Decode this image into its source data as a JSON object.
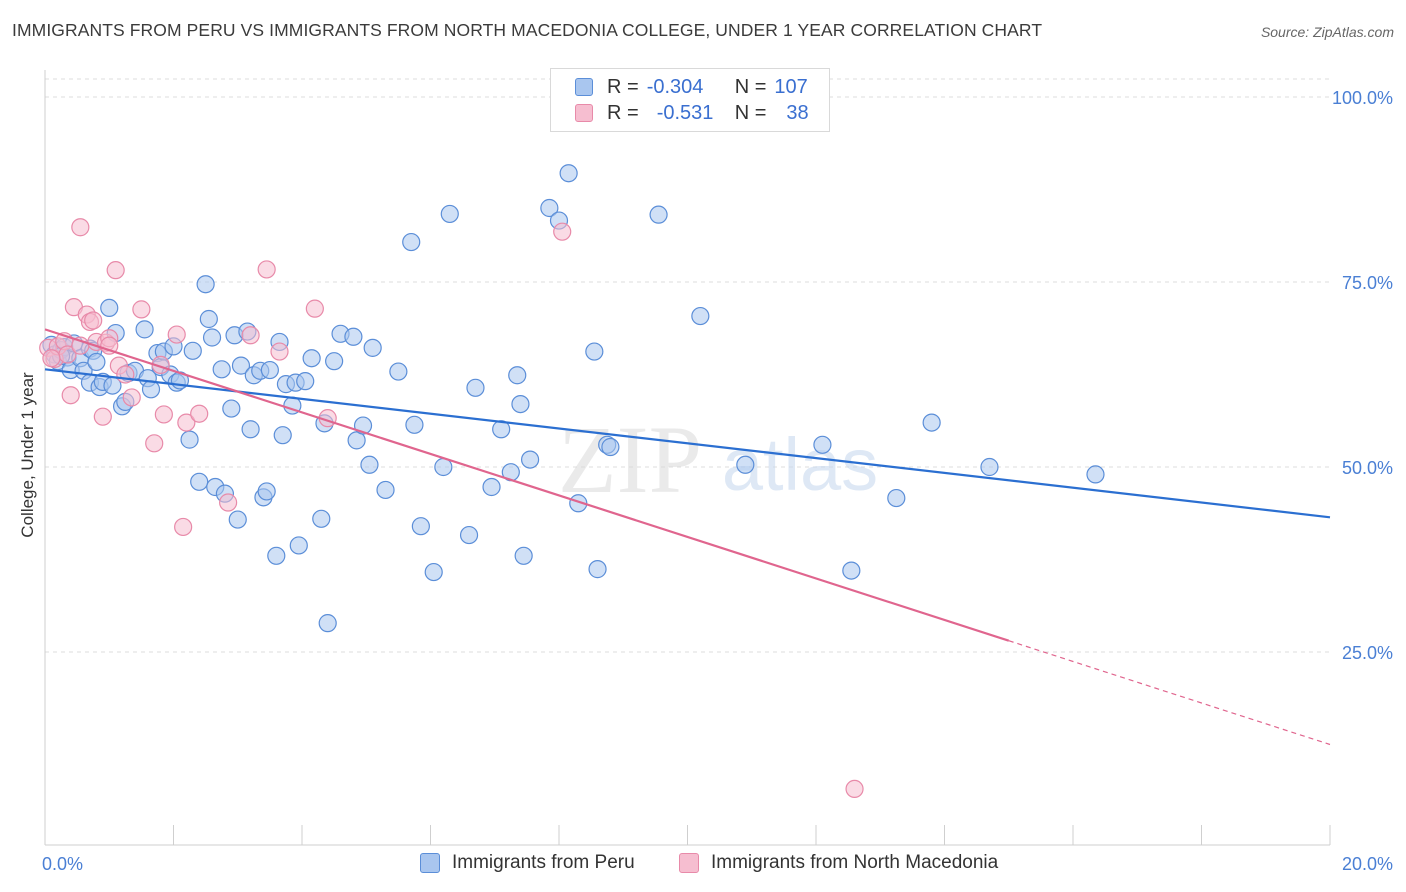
{
  "title": "IMMIGRANTS FROM PERU VS IMMIGRANTS FROM NORTH MACEDONIA COLLEGE, UNDER 1 YEAR CORRELATION CHART",
  "source": "Source: ZipAtlas.com",
  "watermark": {
    "zip": "ZIP",
    "atlas": "atlas"
  },
  "legend": {
    "rows": [
      {
        "r_label": "R =",
        "r_value": "-0.304",
        "n_label": "N =",
        "n_value": "107"
      },
      {
        "r_label": "R =",
        "r_value": "-0.531",
        "n_label": "N =",
        "n_value": "38"
      }
    ]
  },
  "bottom_legend": {
    "peru": "Immigrants from Peru",
    "macedonia": "Immigrants from North Macedonia"
  },
  "colors": {
    "peru_fill": "#a9c6ef",
    "peru_stroke": "#5b8ed8",
    "peru_line": "#2b6fd1",
    "mac_fill": "#f6bed0",
    "mac_stroke": "#e88aa9",
    "mac_line": "#e0658e",
    "axis_text": "#4a7fd4",
    "grid": "#dcdcdc"
  },
  "chart_data": {
    "type": "scatter",
    "title": "IMMIGRANTS FROM PERU VS IMMIGRANTS FROM NORTH MACEDONIA COLLEGE, UNDER 1 YEAR CORRELATION CHART",
    "xlabel": "",
    "ylabel": "College, Under 1 year",
    "xlim": [
      0,
      20
    ],
    "ylim": [
      0,
      105
    ],
    "x_tick_labels": [
      "0.0%",
      "20.0%"
    ],
    "y_ticks": [
      25,
      50,
      75,
      100
    ],
    "y_tick_labels": [
      "25.0%",
      "50.0%",
      "75.0%",
      "100.0%"
    ],
    "grid": true,
    "series": [
      {
        "name": "Immigrants from Peru",
        "points": [
          [
            0.1,
            66.5
          ],
          [
            0.15,
            65.2
          ],
          [
            0.2,
            64.3
          ],
          [
            0.25,
            65.8
          ],
          [
            0.3,
            66.2
          ],
          [
            0.35,
            64.8
          ],
          [
            0.4,
            63.1
          ],
          [
            0.45,
            66.7
          ],
          [
            0.55,
            64.7
          ],
          [
            0.6,
            63.0
          ],
          [
            0.7,
            66.0
          ],
          [
            0.7,
            61.4
          ],
          [
            0.75,
            65.7
          ],
          [
            0.8,
            64.2
          ],
          [
            0.85,
            60.8
          ],
          [
            0.9,
            61.5
          ],
          [
            1.0,
            71.5
          ],
          [
            1.05,
            61.0
          ],
          [
            1.1,
            68.1
          ],
          [
            1.2,
            58.2
          ],
          [
            1.25,
            58.8
          ],
          [
            1.3,
            62.7
          ],
          [
            1.4,
            63.0
          ],
          [
            1.55,
            68.6
          ],
          [
            1.6,
            62.0
          ],
          [
            1.65,
            60.5
          ],
          [
            1.75,
            65.4
          ],
          [
            1.8,
            63.5
          ],
          [
            1.85,
            65.6
          ],
          [
            1.95,
            62.5
          ],
          [
            2.0,
            66.3
          ],
          [
            2.05,
            61.4
          ],
          [
            2.1,
            61.7
          ],
          [
            2.25,
            53.7
          ],
          [
            2.3,
            65.7
          ],
          [
            2.4,
            48.0
          ],
          [
            2.5,
            74.7
          ],
          [
            2.55,
            70.0
          ],
          [
            2.6,
            67.5
          ],
          [
            2.65,
            47.3
          ],
          [
            2.75,
            63.2
          ],
          [
            2.8,
            46.4
          ],
          [
            2.9,
            57.9
          ],
          [
            2.95,
            67.8
          ],
          [
            3.0,
            42.9
          ],
          [
            3.05,
            63.7
          ],
          [
            3.15,
            68.3
          ],
          [
            3.2,
            55.1
          ],
          [
            3.25,
            62.4
          ],
          [
            3.35,
            63.0
          ],
          [
            3.4,
            45.9
          ],
          [
            3.45,
            46.7
          ],
          [
            3.5,
            63.1
          ],
          [
            3.6,
            38.0
          ],
          [
            3.65,
            66.9
          ],
          [
            3.7,
            54.3
          ],
          [
            3.75,
            61.2
          ],
          [
            3.85,
            58.3
          ],
          [
            3.9,
            61.4
          ],
          [
            3.95,
            39.4
          ],
          [
            4.05,
            61.6
          ],
          [
            4.15,
            64.7
          ],
          [
            4.3,
            43.0
          ],
          [
            4.35,
            55.9
          ],
          [
            4.4,
            28.9
          ],
          [
            4.5,
            64.3
          ],
          [
            4.6,
            68.0
          ],
          [
            4.8,
            67.6
          ],
          [
            4.85,
            53.6
          ],
          [
            4.95,
            55.6
          ],
          [
            5.05,
            50.3
          ],
          [
            5.1,
            66.1
          ],
          [
            5.3,
            46.9
          ],
          [
            5.5,
            62.9
          ],
          [
            5.7,
            80.4
          ],
          [
            5.75,
            55.7
          ],
          [
            5.85,
            42.0
          ],
          [
            6.05,
            35.8
          ],
          [
            6.2,
            50.0
          ],
          [
            6.3,
            84.2
          ],
          [
            6.6,
            40.8
          ],
          [
            6.7,
            60.7
          ],
          [
            6.95,
            47.3
          ],
          [
            7.1,
            55.1
          ],
          [
            7.25,
            49.3
          ],
          [
            7.35,
            62.4
          ],
          [
            7.4,
            58.5
          ],
          [
            7.45,
            38.0
          ],
          [
            7.55,
            51.0
          ],
          [
            7.85,
            85.0
          ],
          [
            8.0,
            83.3
          ],
          [
            8.15,
            89.7
          ],
          [
            8.3,
            45.1
          ],
          [
            8.55,
            65.6
          ],
          [
            8.6,
            36.2
          ],
          [
            8.75,
            53.0
          ],
          [
            8.8,
            52.7
          ],
          [
            9.55,
            84.1
          ],
          [
            10.2,
            70.4
          ],
          [
            10.9,
            50.3
          ],
          [
            12.1,
            53.0
          ],
          [
            12.55,
            36.0
          ],
          [
            13.25,
            45.8
          ],
          [
            13.8,
            56.0
          ],
          [
            14.7,
            50.0
          ],
          [
            16.35,
            49.0
          ],
          [
            0.25,
            65.0
          ]
        ]
      },
      {
        "name": "Immigrants from North Macedonia",
        "points": [
          [
            0.05,
            66.1
          ],
          [
            0.15,
            64.6
          ],
          [
            0.2,
            66.3
          ],
          [
            0.3,
            67.0
          ],
          [
            0.35,
            65.2
          ],
          [
            0.4,
            59.7
          ],
          [
            0.45,
            71.6
          ],
          [
            0.55,
            66.4
          ],
          [
            0.55,
            82.4
          ],
          [
            0.65,
            70.6
          ],
          [
            0.7,
            69.6
          ],
          [
            0.75,
            69.8
          ],
          [
            0.8,
            66.9
          ],
          [
            0.9,
            56.8
          ],
          [
            0.95,
            66.8
          ],
          [
            1.0,
            67.4
          ],
          [
            1.1,
            76.6
          ],
          [
            1.15,
            63.7
          ],
          [
            1.25,
            62.5
          ],
          [
            1.35,
            59.4
          ],
          [
            1.5,
            71.3
          ],
          [
            1.7,
            53.2
          ],
          [
            1.8,
            63.8
          ],
          [
            1.85,
            57.1
          ],
          [
            2.05,
            67.9
          ],
          [
            2.15,
            41.9
          ],
          [
            2.2,
            56.0
          ],
          [
            2.4,
            57.2
          ],
          [
            2.85,
            45.2
          ],
          [
            3.2,
            67.8
          ],
          [
            3.45,
            76.7
          ],
          [
            3.65,
            65.6
          ],
          [
            4.2,
            71.4
          ],
          [
            4.4,
            56.6
          ],
          [
            8.05,
            81.8
          ],
          [
            12.6,
            6.5
          ],
          [
            0.1,
            64.7
          ],
          [
            1.0,
            66.4
          ]
        ]
      }
    ],
    "trend_lines": [
      {
        "name": "Immigrants from Peru",
        "x": [
          0,
          20
        ],
        "y": [
          63.2,
          43.2
        ]
      },
      {
        "name": "Immigrants from North Macedonia",
        "x": [
          0,
          20
        ],
        "y": [
          68.6,
          12.5
        ],
        "solid_until_x": 15.0
      }
    ]
  }
}
